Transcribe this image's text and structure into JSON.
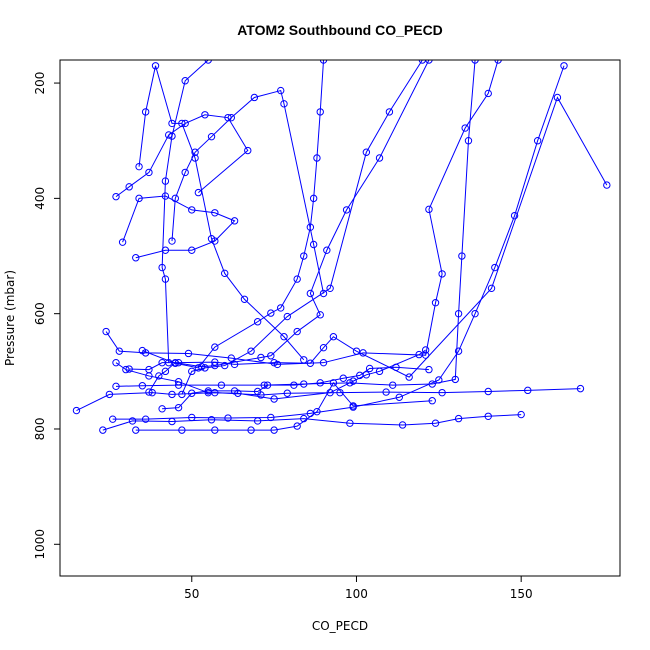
{
  "chart_data": {
    "type": "line",
    "title": "ATOM2 Southbound CO_PECD",
    "xlabel": "CO_PECD",
    "ylabel": "Pressure (mbar)",
    "xlim": [
      10,
      180
    ],
    "ylim": [
      1055,
      160
    ],
    "y_reversed": true,
    "x_ticks": [
      50,
      100,
      150
    ],
    "y_ticks": [
      200,
      400,
      600,
      800,
      1000
    ],
    "grid": false,
    "legend": "none",
    "colors": {
      "series": "#0000ff",
      "axes": "#000000"
    },
    "series": [
      {
        "points": [
          [
            15,
            768
          ],
          [
            25,
            740
          ],
          [
            38,
            737
          ],
          [
            44,
            740
          ],
          [
            57,
            737
          ],
          [
            71,
            741
          ],
          [
            79,
            738
          ],
          [
            95,
            737
          ],
          [
            109,
            736
          ],
          [
            126,
            737
          ],
          [
            140,
            735
          ],
          [
            152,
            733
          ],
          [
            168,
            730
          ]
        ]
      },
      {
        "points": [
          [
            23,
            802
          ],
          [
            32,
            786
          ],
          [
            44,
            787
          ],
          [
            56,
            784
          ],
          [
            70,
            786
          ],
          [
            84,
            782
          ],
          [
            98,
            790
          ],
          [
            114,
            793
          ],
          [
            124,
            790
          ],
          [
            131,
            782
          ],
          [
            140,
            778
          ],
          [
            150,
            775
          ]
        ]
      },
      {
        "points": [
          [
            26,
            783
          ],
          [
            36,
            783
          ],
          [
            50,
            780
          ],
          [
            61,
            781
          ],
          [
            74,
            780
          ],
          [
            86,
            773
          ],
          [
            99,
            762
          ],
          [
            113,
            745
          ],
          [
            125,
            715
          ],
          [
            131,
            665
          ],
          [
            136,
            600
          ],
          [
            142,
            520
          ],
          [
            148,
            430
          ],
          [
            155,
            300
          ],
          [
            163,
            170
          ]
        ]
      },
      {
        "points": [
          [
            33,
            802
          ],
          [
            47,
            802
          ],
          [
            57,
            802
          ],
          [
            68,
            802
          ],
          [
            75,
            802
          ],
          [
            82,
            795
          ],
          [
            88,
            770
          ],
          [
            93,
            720
          ],
          [
            99,
            760
          ],
          [
            123,
            751
          ]
        ]
      },
      {
        "points": [
          [
            27,
            726
          ],
          [
            35,
            725
          ],
          [
            46,
            724
          ],
          [
            59,
            724
          ],
          [
            72,
            724
          ],
          [
            84,
            722
          ],
          [
            98,
            720
          ],
          [
            111,
            724
          ],
          [
            123,
            722
          ],
          [
            130,
            714
          ],
          [
            131,
            600
          ],
          [
            132,
            500
          ],
          [
            134,
            300
          ],
          [
            136,
            160
          ]
        ]
      },
      {
        "points": [
          [
            24,
            631
          ],
          [
            28,
            665
          ],
          [
            36,
            668
          ],
          [
            49,
            669
          ],
          [
            62,
            677
          ],
          [
            76,
            688
          ],
          [
            90,
            685
          ],
          [
            102,
            668
          ],
          [
            121,
            672
          ],
          [
            124,
            581
          ],
          [
            126,
            531
          ],
          [
            122,
            419
          ],
          [
            133,
            278
          ],
          [
            140,
            218
          ],
          [
            143,
            160
          ]
        ]
      },
      {
        "points": [
          [
            27,
            685
          ],
          [
            30,
            697
          ],
          [
            37,
            708
          ],
          [
            46,
            718
          ],
          [
            55,
            737
          ],
          [
            64,
            738
          ],
          [
            75,
            748
          ],
          [
            92,
            737
          ],
          [
            99,
            717
          ],
          [
            103,
            706
          ],
          [
            107,
            700
          ],
          [
            119,
            671
          ],
          [
            121,
            663
          ]
        ]
      },
      {
        "points": [
          [
            27,
            397
          ],
          [
            31,
            380
          ],
          [
            37,
            355
          ],
          [
            43,
            290
          ],
          [
            48,
            270
          ],
          [
            54,
            255
          ],
          [
            61,
            260
          ],
          [
            67,
            317
          ],
          [
            52,
            390
          ]
        ]
      },
      {
        "points": [
          [
            29,
            476
          ],
          [
            34,
            400
          ],
          [
            42,
            396
          ],
          [
            50,
            420
          ],
          [
            57,
            425
          ],
          [
            63,
            439
          ],
          [
            57,
            474
          ],
          [
            50,
            490
          ],
          [
            42,
            490
          ],
          [
            33,
            503
          ]
        ]
      },
      {
        "points": [
          [
            31,
            696
          ],
          [
            37,
            697
          ],
          [
            41,
            685
          ],
          [
            46,
            685
          ],
          [
            57,
            684
          ],
          [
            63,
            688
          ],
          [
            75,
            685
          ],
          [
            86,
            686
          ],
          [
            90,
            659
          ],
          [
            93,
            640
          ],
          [
            100,
            665
          ],
          [
            116,
            710
          ],
          [
            141,
            556
          ],
          [
            161,
            225
          ],
          [
            176,
            377
          ]
        ]
      },
      {
        "points": [
          [
            34,
            345
          ],
          [
            36,
            250
          ],
          [
            39,
            170
          ],
          [
            44,
            270
          ],
          [
            47,
            270
          ],
          [
            51,
            330
          ],
          [
            56,
            470
          ],
          [
            60,
            530
          ],
          [
            66,
            575
          ],
          [
            78,
            640
          ],
          [
            84,
            680
          ]
        ]
      },
      {
        "points": [
          [
            37,
            736
          ],
          [
            40,
            708
          ],
          [
            42,
            700
          ],
          [
            45,
            685
          ],
          [
            53,
            692
          ],
          [
            57,
            690
          ],
          [
            71,
            676
          ],
          [
            74,
            673
          ],
          [
            82,
            631
          ],
          [
            89,
            602
          ],
          [
            86,
            565
          ],
          [
            91,
            490
          ],
          [
            97,
            420
          ],
          [
            107,
            330
          ],
          [
            122,
            160
          ]
        ]
      },
      {
        "points": [
          [
            35,
            664
          ],
          [
            45,
            686
          ],
          [
            52,
            694
          ],
          [
            57,
            658
          ],
          [
            70,
            614
          ],
          [
            74,
            599
          ],
          [
            77,
            590
          ],
          [
            82,
            540
          ],
          [
            84,
            500
          ],
          [
            86,
            450
          ],
          [
            87,
            400
          ],
          [
            88,
            330
          ],
          [
            89,
            250
          ],
          [
            90,
            160
          ]
        ]
      },
      {
        "points": [
          [
            41,
            765
          ],
          [
            46,
            763
          ],
          [
            50,
            738
          ],
          [
            55,
            734
          ],
          [
            63,
            734
          ],
          [
            70,
            735
          ],
          [
            73,
            724
          ],
          [
            81,
            724
          ],
          [
            89,
            720
          ],
          [
            96,
            712
          ],
          [
            101,
            707
          ],
          [
            104,
            695
          ],
          [
            112,
            693
          ],
          [
            122,
            697
          ]
        ]
      },
      {
        "points": [
          [
            44,
            474
          ],
          [
            45,
            400
          ],
          [
            48,
            355
          ],
          [
            51,
            320
          ],
          [
            56,
            293
          ],
          [
            62,
            260
          ],
          [
            69,
            225
          ],
          [
            77,
            213
          ],
          [
            78,
            236
          ],
          [
            87,
            480
          ],
          [
            90,
            565
          ]
        ]
      },
      {
        "points": [
          [
            47,
            740
          ],
          [
            50,
            700
          ],
          [
            54,
            694
          ],
          [
            60,
            690
          ],
          [
            68,
            665
          ],
          [
            79,
            605
          ],
          [
            92,
            556
          ],
          [
            103,
            320
          ],
          [
            110,
            250
          ],
          [
            120,
            160
          ]
        ]
      },
      {
        "points": [
          [
            43,
            685
          ],
          [
            42,
            540
          ],
          [
            41,
            520
          ],
          [
            42,
            370
          ],
          [
            44,
            292
          ],
          [
            48,
            196
          ],
          [
            55,
            160
          ]
        ]
      }
    ]
  }
}
